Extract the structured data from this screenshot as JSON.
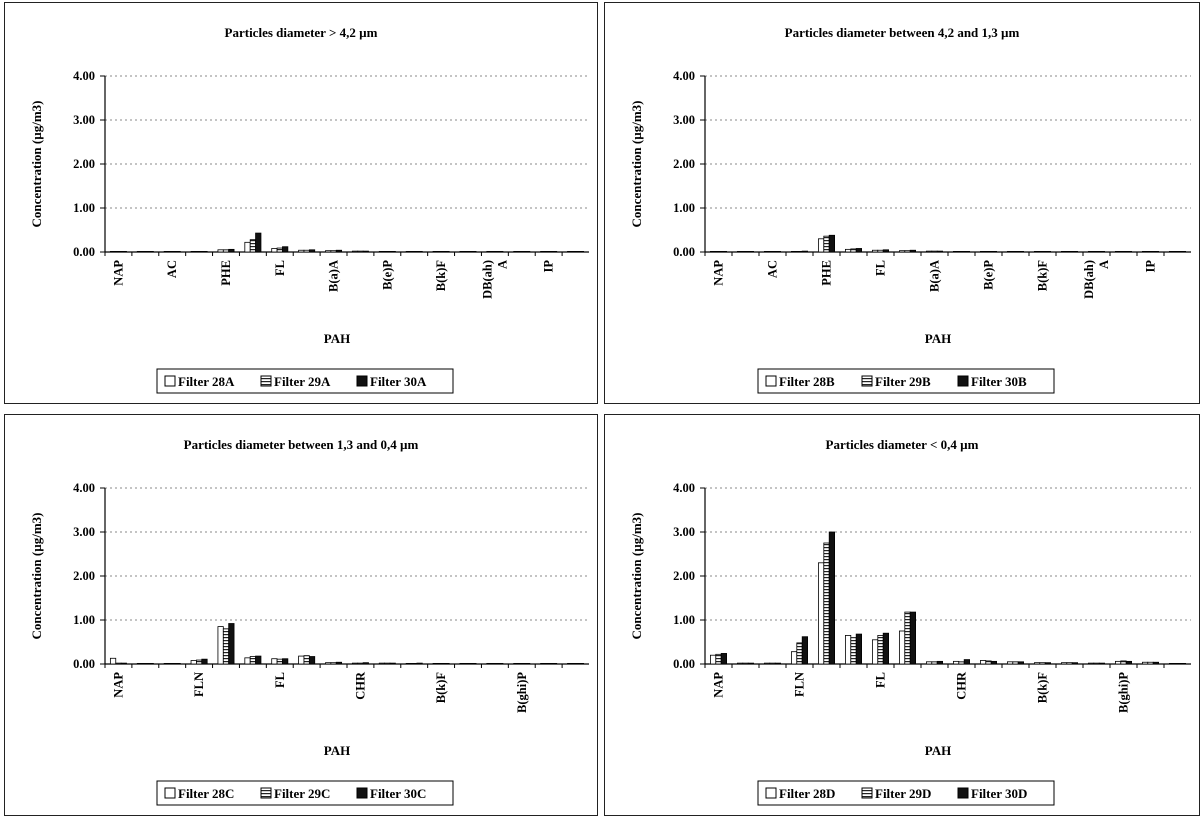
{
  "chart_data": [
    {
      "type": "bar",
      "title": "Particles diameter  >  4,2 µm",
      "xlabel": "PAH",
      "ylabel": "Concentration (µg/m3)",
      "ylim": [
        0,
        4
      ],
      "yticks": [
        "0.00",
        "1.00",
        "2.00",
        "3.00",
        "4.00"
      ],
      "grid": true,
      "legend_position": "bottom",
      "category_labels": [
        "NAP",
        "",
        "AC",
        "",
        "PHE",
        "",
        "FL",
        "",
        "B(a)A",
        "",
        "B(e)P",
        "",
        "B(k)F",
        "",
        "DB(ah)\nA",
        "",
        "IP",
        ""
      ],
      "series": [
        {
          "name": "Filter 28A",
          "style": "open",
          "values": [
            0.01,
            0.01,
            0.01,
            0.01,
            0.05,
            0.22,
            0.08,
            0.04,
            0.03,
            0.02,
            0.01,
            0.01,
            0.01,
            0.01,
            0.01,
            0.01,
            0.01,
            0.01
          ]
        },
        {
          "name": "Filter 29A",
          "style": "striped",
          "values": [
            0.01,
            0.01,
            0.01,
            0.01,
            0.05,
            0.28,
            0.09,
            0.04,
            0.03,
            0.02,
            0.01,
            0.01,
            0.01,
            0.01,
            0.01,
            0.01,
            0.01,
            0.01
          ]
        },
        {
          "name": "Filter 30A",
          "style": "solid",
          "values": [
            0.01,
            0.01,
            0.01,
            0.01,
            0.06,
            0.43,
            0.12,
            0.05,
            0.04,
            0.02,
            0.01,
            0.01,
            0.01,
            0.01,
            0.01,
            0.01,
            0.01,
            0.01
          ]
        }
      ]
    },
    {
      "type": "bar",
      "title": "Particles diameter between 4,2 and 1,3 µm",
      "xlabel": "PAH",
      "ylabel": "Concentration (µg/m3)",
      "ylim": [
        0,
        4
      ],
      "yticks": [
        "0.00",
        "1.00",
        "2.00",
        "3.00",
        "4.00"
      ],
      "grid": true,
      "legend_position": "bottom",
      "category_labels": [
        "NAP",
        "",
        "AC",
        "",
        "PHE",
        "",
        "FL",
        "",
        "B(a)A",
        "",
        "B(e)P",
        "",
        "B(k)F",
        "",
        "DB(ah)\nA",
        "",
        "IP",
        ""
      ],
      "series": [
        {
          "name": "Filter 28B",
          "style": "open",
          "values": [
            0.01,
            0.01,
            0.01,
            0.01,
            0.3,
            0.06,
            0.04,
            0.03,
            0.02,
            0.01,
            0.01,
            0.01,
            0.01,
            0.01,
            0.01,
            0.01,
            0.01,
            0.01
          ]
        },
        {
          "name": "Filter 29B",
          "style": "striped",
          "values": [
            0.01,
            0.01,
            0.01,
            0.01,
            0.36,
            0.07,
            0.04,
            0.03,
            0.02,
            0.01,
            0.01,
            0.01,
            0.01,
            0.01,
            0.01,
            0.01,
            0.01,
            0.01
          ]
        },
        {
          "name": "Filter 30B",
          "style": "solid",
          "values": [
            0.01,
            0.01,
            0.01,
            0.02,
            0.38,
            0.08,
            0.05,
            0.04,
            0.02,
            0.01,
            0.01,
            0.01,
            0.01,
            0.01,
            0.01,
            0.01,
            0.01,
            0.01
          ]
        }
      ]
    },
    {
      "type": "bar",
      "title": "Particles diameter between 1,3 and 0,4 µm",
      "xlabel": "PAH",
      "ylabel": "Concentration (µg/m3)",
      "ylim": [
        0,
        4
      ],
      "yticks": [
        "0.00",
        "1.00",
        "2.00",
        "3.00",
        "4.00"
      ],
      "grid": true,
      "legend_position": "bottom",
      "category_labels": [
        "NAP",
        "",
        "",
        "FLN",
        "",
        "",
        "FL",
        "",
        "",
        "CHR",
        "",
        "",
        "B(k)F",
        "",
        "",
        "B(ghi)P",
        "",
        ""
      ],
      "series": [
        {
          "name": "Filter 28C",
          "style": "open",
          "values": [
            0.13,
            0.01,
            0.01,
            0.08,
            0.85,
            0.14,
            0.12,
            0.18,
            0.03,
            0.02,
            0.02,
            0.01,
            0.01,
            0.01,
            0.01,
            0.01,
            0.01,
            0.01
          ]
        },
        {
          "name": "Filter 29C",
          "style": "striped",
          "values": [
            0.02,
            0.01,
            0.01,
            0.09,
            0.8,
            0.17,
            0.11,
            0.19,
            0.03,
            0.02,
            0.02,
            0.01,
            0.01,
            0.01,
            0.01,
            0.01,
            0.01,
            0.01
          ]
        },
        {
          "name": "Filter 30C",
          "style": "solid",
          "values": [
            0.02,
            0.01,
            0.01,
            0.11,
            0.92,
            0.18,
            0.12,
            0.17,
            0.04,
            0.03,
            0.02,
            0.02,
            0.01,
            0.01,
            0.01,
            0.01,
            0.01,
            0.01
          ]
        }
      ]
    },
    {
      "type": "bar",
      "title": "Particles diameter  <  0,4 µm",
      "xlabel": "PAH",
      "ylabel": "Concentration (µg/m3)",
      "ylim": [
        0,
        4
      ],
      "yticks": [
        "0.00",
        "1.00",
        "2.00",
        "3.00",
        "4.00"
      ],
      "grid": true,
      "legend_position": "bottom",
      "category_labels": [
        "NAP",
        "",
        "",
        "FLN",
        "",
        "",
        "FL",
        "",
        "",
        "CHR",
        "",
        "",
        "B(k)F",
        "",
        "",
        "B(ghi)P",
        "",
        ""
      ],
      "series": [
        {
          "name": "Filter 28D",
          "style": "open",
          "values": [
            0.2,
            0.02,
            0.02,
            0.28,
            2.3,
            0.65,
            0.55,
            0.75,
            0.05,
            0.06,
            0.08,
            0.05,
            0.03,
            0.03,
            0.02,
            0.06,
            0.04,
            0.01
          ]
        },
        {
          "name": "Filter 29D",
          "style": "striped",
          "values": [
            0.22,
            0.02,
            0.02,
            0.48,
            2.75,
            0.6,
            0.65,
            1.18,
            0.05,
            0.05,
            0.07,
            0.05,
            0.03,
            0.03,
            0.02,
            0.07,
            0.04,
            0.01
          ]
        },
        {
          "name": "Filter 30D",
          "style": "solid",
          "values": [
            0.24,
            0.02,
            0.02,
            0.62,
            3.0,
            0.68,
            0.7,
            1.18,
            0.06,
            0.1,
            0.06,
            0.05,
            0.03,
            0.03,
            0.02,
            0.06,
            0.04,
            0.01
          ]
        }
      ]
    }
  ]
}
